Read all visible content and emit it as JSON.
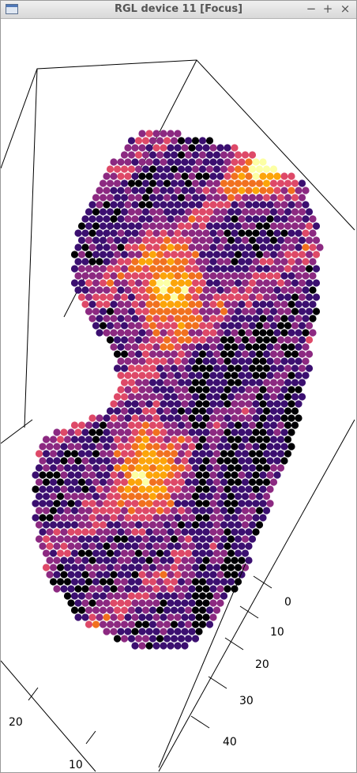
{
  "window": {
    "title": "RGL device 11 [Focus]",
    "minimize_glyph": "−",
    "maximize_glyph": "+",
    "close_glyph": "×"
  },
  "plot": {
    "axis_a_ticks": [
      "0",
      "10",
      "20",
      "30",
      "40"
    ],
    "axis_b_ticks": [
      "20",
      "10"
    ],
    "palette": [
      "#000004",
      "#3b0f70",
      "#8c2981",
      "#de4968",
      "#f1711f",
      "#fca50a",
      "#fcffa4"
    ]
  }
}
